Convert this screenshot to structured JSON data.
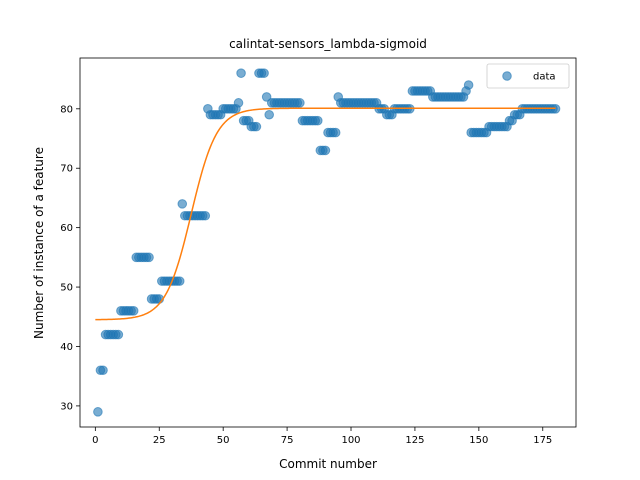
{
  "chart_data": {
    "type": "scatter",
    "title": "calintat-sensors_lambda-sigmoid",
    "xlabel": "Commit number",
    "ylabel": "Number of instance of a feature",
    "xlim": [
      -6,
      188
    ],
    "ylim": [
      26.45,
      88.55
    ],
    "xticks": [
      0,
      25,
      50,
      75,
      100,
      125,
      150,
      175
    ],
    "yticks": [
      30,
      40,
      50,
      60,
      70,
      80
    ],
    "grid": false,
    "legend": {
      "position": "top-right",
      "entries": [
        "data"
      ]
    },
    "colors": {
      "points": "#1f77b4",
      "fit": "#ff7f0e"
    },
    "series": [
      {
        "name": "data",
        "kind": "scatter",
        "points": [
          [
            1,
            29
          ],
          [
            2,
            36
          ],
          [
            3,
            36
          ],
          [
            4,
            42
          ],
          [
            5,
            42
          ],
          [
            6,
            42
          ],
          [
            7,
            42
          ],
          [
            8,
            42
          ],
          [
            9,
            42
          ],
          [
            10,
            46
          ],
          [
            11,
            46
          ],
          [
            12,
            46
          ],
          [
            13,
            46
          ],
          [
            14,
            46
          ],
          [
            15,
            46
          ],
          [
            16,
            55
          ],
          [
            17,
            55
          ],
          [
            18,
            55
          ],
          [
            19,
            55
          ],
          [
            20,
            55
          ],
          [
            21,
            55
          ],
          [
            22,
            48
          ],
          [
            23,
            48
          ],
          [
            24,
            48
          ],
          [
            25,
            48
          ],
          [
            26,
            51
          ],
          [
            27,
            51
          ],
          [
            28,
            51
          ],
          [
            29,
            51
          ],
          [
            30,
            51
          ],
          [
            31,
            51
          ],
          [
            32,
            51
          ],
          [
            33,
            51
          ],
          [
            34,
            64
          ],
          [
            35,
            62
          ],
          [
            36,
            62
          ],
          [
            37,
            62
          ],
          [
            38,
            62
          ],
          [
            39,
            62
          ],
          [
            40,
            62
          ],
          [
            41,
            62
          ],
          [
            42,
            62
          ],
          [
            43,
            62
          ],
          [
            44,
            80
          ],
          [
            45,
            79
          ],
          [
            46,
            79
          ],
          [
            47,
            79
          ],
          [
            48,
            79
          ],
          [
            49,
            79
          ],
          [
            50,
            80
          ],
          [
            51,
            80
          ],
          [
            52,
            80
          ],
          [
            53,
            80
          ],
          [
            54,
            80
          ],
          [
            55,
            80
          ],
          [
            56,
            81
          ],
          [
            57,
            86
          ],
          [
            58,
            78
          ],
          [
            59,
            78
          ],
          [
            60,
            78
          ],
          [
            61,
            77
          ],
          [
            62,
            77
          ],
          [
            63,
            77
          ],
          [
            64,
            86
          ],
          [
            65,
            86
          ],
          [
            66,
            86
          ],
          [
            67,
            82
          ],
          [
            68,
            79
          ],
          [
            69,
            81
          ],
          [
            70,
            81
          ],
          [
            71,
            81
          ],
          [
            72,
            81
          ],
          [
            73,
            81
          ],
          [
            74,
            81
          ],
          [
            75,
            81
          ],
          [
            76,
            81
          ],
          [
            77,
            81
          ],
          [
            78,
            81
          ],
          [
            79,
            81
          ],
          [
            80,
            81
          ],
          [
            81,
            78
          ],
          [
            82,
            78
          ],
          [
            83,
            78
          ],
          [
            84,
            78
          ],
          [
            85,
            78
          ],
          [
            86,
            78
          ],
          [
            87,
            78
          ],
          [
            88,
            73
          ],
          [
            89,
            73
          ],
          [
            90,
            73
          ],
          [
            91,
            76
          ],
          [
            92,
            76
          ],
          [
            93,
            76
          ],
          [
            94,
            76
          ],
          [
            95,
            82
          ],
          [
            96,
            81
          ],
          [
            97,
            81
          ],
          [
            98,
            81
          ],
          [
            99,
            81
          ],
          [
            100,
            81
          ],
          [
            101,
            81
          ],
          [
            102,
            81
          ],
          [
            103,
            81
          ],
          [
            104,
            81
          ],
          [
            105,
            81
          ],
          [
            106,
            81
          ],
          [
            107,
            81
          ],
          [
            108,
            81
          ],
          [
            109,
            81
          ],
          [
            110,
            81
          ],
          [
            111,
            80
          ],
          [
            112,
            80
          ],
          [
            113,
            80
          ],
          [
            114,
            79
          ],
          [
            115,
            79
          ],
          [
            116,
            79
          ],
          [
            117,
            80
          ],
          [
            118,
            80
          ],
          [
            119,
            80
          ],
          [
            120,
            80
          ],
          [
            121,
            80
          ],
          [
            122,
            80
          ],
          [
            123,
            80
          ],
          [
            124,
            83
          ],
          [
            125,
            83
          ],
          [
            126,
            83
          ],
          [
            127,
            83
          ],
          [
            128,
            83
          ],
          [
            129,
            83
          ],
          [
            130,
            83
          ],
          [
            131,
            83
          ],
          [
            132,
            82
          ],
          [
            133,
            82
          ],
          [
            134,
            82
          ],
          [
            135,
            82
          ],
          [
            136,
            82
          ],
          [
            137,
            82
          ],
          [
            138,
            82
          ],
          [
            139,
            82
          ],
          [
            140,
            82
          ],
          [
            141,
            82
          ],
          [
            142,
            82
          ],
          [
            143,
            82
          ],
          [
            144,
            82
          ],
          [
            145,
            83
          ],
          [
            146,
            84
          ],
          [
            147,
            76
          ],
          [
            148,
            76
          ],
          [
            149,
            76
          ],
          [
            150,
            76
          ],
          [
            151,
            76
          ],
          [
            152,
            76
          ],
          [
            153,
            76
          ],
          [
            154,
            77
          ],
          [
            155,
            77
          ],
          [
            156,
            77
          ],
          [
            157,
            77
          ],
          [
            158,
            77
          ],
          [
            159,
            77
          ],
          [
            160,
            77
          ],
          [
            161,
            77
          ],
          [
            162,
            78
          ],
          [
            163,
            78
          ],
          [
            164,
            79
          ],
          [
            165,
            79
          ],
          [
            166,
            79
          ],
          [
            167,
            80
          ],
          [
            168,
            80
          ],
          [
            169,
            80
          ],
          [
            170,
            80
          ],
          [
            171,
            80
          ],
          [
            172,
            80
          ],
          [
            173,
            80
          ],
          [
            174,
            80
          ],
          [
            175,
            80
          ],
          [
            176,
            80
          ],
          [
            177,
            80
          ],
          [
            178,
            80
          ],
          [
            179,
            80
          ],
          [
            180,
            80
          ]
        ]
      },
      {
        "kind": "sigmoid-fit",
        "low": 44.5,
        "high": 80.1,
        "midpoint": 37.5,
        "rate": 0.2,
        "x_range": [
          0,
          180
        ]
      }
    ]
  }
}
